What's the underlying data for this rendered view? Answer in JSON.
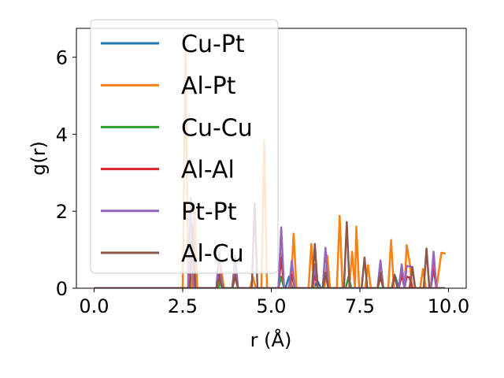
{
  "chart_data": {
    "type": "line",
    "title": "",
    "xlabel": "r (Å)",
    "ylabel": "g(r)",
    "xlim": [
      -0.5,
      10.5
    ],
    "ylim": [
      0,
      6.75
    ],
    "xticks": [
      0.0,
      2.5,
      5.0,
      7.5,
      10.0
    ],
    "xtick_labels": [
      "0.0",
      "2.5",
      "5.0",
      "7.5",
      "10.0"
    ],
    "yticks": [
      0,
      2,
      4,
      6
    ],
    "ytick_labels": [
      "0",
      "2",
      "4",
      "6"
    ],
    "grid": false,
    "legend_position": "upper-left",
    "series": [
      {
        "name": "Cu-Pt",
        "color": "#1f77b4",
        "points": [
          [
            0,
            0
          ],
          [
            2.5,
            0
          ],
          [
            3.5,
            0
          ],
          [
            3.58,
            0.25
          ],
          [
            3.66,
            0
          ],
          [
            5.4,
            0
          ],
          [
            5.5,
            0.3
          ],
          [
            5.6,
            0
          ],
          [
            6.2,
            0
          ],
          [
            6.3,
            0.2
          ],
          [
            6.4,
            0
          ],
          [
            8.4,
            0
          ],
          [
            8.5,
            0.3
          ],
          [
            8.6,
            0
          ],
          [
            9.9,
            0
          ]
        ]
      },
      {
        "name": "Al-Pt",
        "color": "#ff7f0e",
        "points": [
          [
            0,
            0
          ],
          [
            2.5,
            0
          ],
          [
            2.58,
            6.2
          ],
          [
            2.66,
            0
          ],
          [
            2.75,
            0
          ],
          [
            2.83,
            2.1
          ],
          [
            2.91,
            0
          ],
          [
            3.5,
            0
          ],
          [
            3.58,
            0.6
          ],
          [
            3.66,
            0
          ],
          [
            3.9,
            0
          ],
          [
            3.98,
            0.8
          ],
          [
            4.06,
            0
          ],
          [
            4.4,
            0
          ],
          [
            4.48,
            0.3
          ],
          [
            4.56,
            0
          ],
          [
            4.72,
            0
          ],
          [
            4.8,
            3.85
          ],
          [
            4.88,
            0
          ],
          [
            5.2,
            0
          ],
          [
            5.28,
            0.9
          ],
          [
            5.36,
            0
          ],
          [
            5.55,
            0
          ],
          [
            5.63,
            1.42
          ],
          [
            5.71,
            0
          ],
          [
            6.05,
            0
          ],
          [
            6.13,
            1.15
          ],
          [
            6.21,
            0
          ],
          [
            6.5,
            0
          ],
          [
            6.58,
            0.85
          ],
          [
            6.66,
            0
          ],
          [
            6.85,
            0
          ],
          [
            6.93,
            1.88
          ],
          [
            7.01,
            0
          ],
          [
            7.2,
            0
          ],
          [
            7.28,
            0.95
          ],
          [
            7.36,
            0
          ],
          [
            7.4,
            1.6
          ],
          [
            7.48,
            0
          ],
          [
            7.65,
            0
          ],
          [
            7.73,
            0.6
          ],
          [
            7.81,
            0
          ],
          [
            8.0,
            0
          ],
          [
            8.08,
            0.7
          ],
          [
            8.16,
            0
          ],
          [
            8.3,
            0
          ],
          [
            8.38,
            1.25
          ],
          [
            8.46,
            0
          ],
          [
            8.6,
            0
          ],
          [
            8.68,
            0.5
          ],
          [
            8.76,
            0
          ],
          [
            8.82,
            1.12
          ],
          [
            8.9,
            0.7
          ],
          [
            8.98,
            0
          ],
          [
            9.2,
            0
          ],
          [
            9.28,
            0.5
          ],
          [
            9.36,
            0
          ],
          [
            9.5,
            0
          ],
          [
            9.58,
            0.8
          ],
          [
            9.66,
            0
          ],
          [
            9.8,
            0.92
          ],
          [
            9.92,
            0.9
          ]
        ]
      },
      {
        "name": "Cu-Cu",
        "color": "#2ca02c",
        "points": [
          [
            0,
            0
          ],
          [
            3.5,
            0
          ],
          [
            3.58,
            0.2
          ],
          [
            3.66,
            0
          ],
          [
            5.2,
            0
          ],
          [
            5.28,
            0.3
          ],
          [
            5.36,
            0
          ],
          [
            7.1,
            0
          ],
          [
            7.18,
            0.3
          ],
          [
            7.26,
            0
          ],
          [
            9.9,
            0
          ]
        ]
      },
      {
        "name": "Al-Al",
        "color": "#d62728",
        "points": [
          [
            0,
            0
          ],
          [
            3.45,
            0
          ],
          [
            3.53,
            0.35
          ],
          [
            3.61,
            0
          ],
          [
            3.9,
            0
          ],
          [
            3.98,
            0.3
          ],
          [
            4.06,
            0
          ],
          [
            5.2,
            0
          ],
          [
            5.28,
            0.8
          ],
          [
            5.36,
            0
          ],
          [
            5.5,
            0
          ],
          [
            5.58,
            0.35
          ],
          [
            5.66,
            0
          ],
          [
            6.15,
            0
          ],
          [
            6.23,
            0.35
          ],
          [
            6.31,
            0
          ],
          [
            6.45,
            0
          ],
          [
            6.53,
            0.4
          ],
          [
            6.61,
            0
          ],
          [
            8.0,
            0
          ],
          [
            8.08,
            0.3
          ],
          [
            8.16,
            0
          ],
          [
            8.6,
            0
          ],
          [
            8.68,
            0.35
          ],
          [
            8.76,
            0
          ],
          [
            8.82,
            0.3
          ],
          [
            8.9,
            0.28
          ],
          [
            8.98,
            0
          ],
          [
            9.5,
            0
          ],
          [
            9.58,
            0.5
          ],
          [
            9.66,
            0
          ],
          [
            9.9,
            0
          ]
        ]
      },
      {
        "name": "Pt-Pt",
        "color": "#9467bd",
        "points": [
          [
            0,
            0
          ],
          [
            2.65,
            0
          ],
          [
            2.73,
            2.35
          ],
          [
            2.81,
            0
          ],
          [
            3.45,
            0
          ],
          [
            3.53,
            0.95
          ],
          [
            3.61,
            0
          ],
          [
            3.9,
            0
          ],
          [
            3.98,
            0.85
          ],
          [
            4.06,
            0
          ],
          [
            5.2,
            0
          ],
          [
            5.28,
            1.58
          ],
          [
            5.36,
            0
          ],
          [
            5.5,
            0
          ],
          [
            5.58,
            0.72
          ],
          [
            5.66,
            0
          ],
          [
            6.15,
            0
          ],
          [
            6.23,
            0.62
          ],
          [
            6.31,
            0
          ],
          [
            6.45,
            0
          ],
          [
            6.53,
            1.05
          ],
          [
            6.61,
            0
          ],
          [
            8.0,
            0
          ],
          [
            8.08,
            0.72
          ],
          [
            8.16,
            0
          ],
          [
            8.6,
            0
          ],
          [
            8.68,
            0.62
          ],
          [
            8.76,
            0
          ],
          [
            8.82,
            0.58
          ],
          [
            8.98,
            0.55
          ],
          [
            9.06,
            0
          ],
          [
            9.5,
            0
          ],
          [
            9.58,
            0.95
          ],
          [
            9.66,
            0
          ],
          [
            9.9,
            0
          ]
        ]
      },
      {
        "name": "Al-Cu",
        "color": "#8c564b",
        "points": [
          [
            0,
            0
          ],
          [
            2.7,
            0
          ],
          [
            2.78,
            1.6
          ],
          [
            2.86,
            0
          ],
          [
            3.45,
            0
          ],
          [
            3.53,
            0.3
          ],
          [
            3.61,
            0
          ],
          [
            3.9,
            0
          ],
          [
            3.98,
            0.35
          ],
          [
            4.06,
            0
          ],
          [
            4.45,
            0
          ],
          [
            4.53,
            2.2
          ],
          [
            4.61,
            0
          ],
          [
            6.15,
            0
          ],
          [
            6.23,
            1.15
          ],
          [
            6.31,
            0
          ],
          [
            6.45,
            0
          ],
          [
            6.53,
            0.4
          ],
          [
            6.61,
            0
          ],
          [
            7.05,
            0
          ],
          [
            7.13,
            1.72
          ],
          [
            7.21,
            0
          ],
          [
            7.55,
            0
          ],
          [
            7.63,
            0.8
          ],
          [
            7.71,
            0
          ],
          [
            8.0,
            0
          ],
          [
            8.08,
            0.4
          ],
          [
            8.16,
            0
          ],
          [
            8.4,
            0
          ],
          [
            8.48,
            0.35
          ],
          [
            8.56,
            0
          ],
          [
            8.9,
            0
          ],
          [
            8.98,
            0.55
          ],
          [
            9.06,
            0
          ],
          [
            9.3,
            0
          ],
          [
            9.38,
            1.03
          ],
          [
            9.46,
            0
          ],
          [
            9.9,
            0
          ]
        ]
      }
    ]
  }
}
